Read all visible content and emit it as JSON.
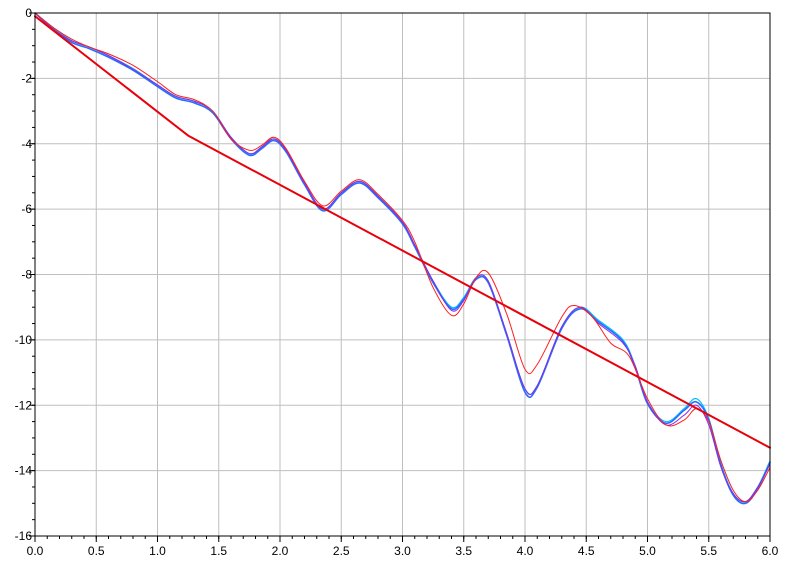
{
  "chart_data": {
    "type": "line",
    "title": "",
    "xlabel": "",
    "ylabel": "",
    "xlim": [
      0,
      6
    ],
    "ylim": [
      -16,
      0
    ],
    "grid": true,
    "x_ticks": [
      {
        "value": 0,
        "label": "0.0"
      },
      {
        "value": 0.5,
        "label": "0.5"
      },
      {
        "value": 1,
        "label": "1.0"
      },
      {
        "value": 1.5,
        "label": "1.5"
      },
      {
        "value": 2,
        "label": "2.0"
      },
      {
        "value": 2.5,
        "label": "2.5"
      },
      {
        "value": 3,
        "label": "3.0"
      },
      {
        "value": 3.5,
        "label": "3.5"
      },
      {
        "value": 4,
        "label": "4.0"
      },
      {
        "value": 4.5,
        "label": "4.5"
      },
      {
        "value": 5,
        "label": "5.0"
      },
      {
        "value": 5.5,
        "label": "5.5"
      },
      {
        "value": 6,
        "label": "6.0"
      }
    ],
    "y_ticks": [
      {
        "value": 0,
        "label": "0"
      },
      {
        "value": -2,
        "label": "-2"
      },
      {
        "value": -4,
        "label": "-4"
      },
      {
        "value": -6,
        "label": "-6"
      },
      {
        "value": -8,
        "label": "-8"
      },
      {
        "value": -10,
        "label": "-10"
      },
      {
        "value": -12,
        "label": "-12"
      },
      {
        "value": -14,
        "label": "-14"
      },
      {
        "value": -16,
        "label": "-16"
      }
    ],
    "series": [
      {
        "color": "#00bfff",
        "width": 1.2,
        "points": [
          [
            0,
            0
          ],
          [
            0.15,
            -0.45
          ],
          [
            0.3,
            -0.85
          ],
          [
            0.45,
            -1.05
          ],
          [
            0.6,
            -1.3
          ],
          [
            0.8,
            -1.7
          ],
          [
            1.0,
            -2.2
          ],
          [
            1.15,
            -2.55
          ],
          [
            1.3,
            -2.7
          ],
          [
            1.45,
            -3.0
          ],
          [
            1.6,
            -3.8
          ],
          [
            1.75,
            -4.3
          ],
          [
            1.85,
            -4.1
          ],
          [
            1.95,
            -3.85
          ],
          [
            2.05,
            -4.2
          ],
          [
            2.2,
            -5.2
          ],
          [
            2.35,
            -6.0
          ],
          [
            2.5,
            -5.5
          ],
          [
            2.65,
            -5.15
          ],
          [
            2.8,
            -5.6
          ],
          [
            3.0,
            -6.4
          ],
          [
            3.1,
            -7.1
          ],
          [
            3.25,
            -8.2
          ],
          [
            3.4,
            -9.0
          ],
          [
            3.5,
            -8.7
          ],
          [
            3.6,
            -8.1
          ],
          [
            3.7,
            -8.2
          ],
          [
            3.85,
            -9.8
          ],
          [
            4.0,
            -11.5
          ],
          [
            4.1,
            -11.4
          ],
          [
            4.3,
            -9.6
          ],
          [
            4.45,
            -9.0
          ],
          [
            4.6,
            -9.4
          ],
          [
            4.8,
            -10.0
          ],
          [
            4.9,
            -10.8
          ],
          [
            5.0,
            -11.9
          ],
          [
            5.15,
            -12.5
          ],
          [
            5.3,
            -12.1
          ],
          [
            5.4,
            -11.8
          ],
          [
            5.5,
            -12.4
          ],
          [
            5.6,
            -13.8
          ],
          [
            5.7,
            -14.7
          ],
          [
            5.8,
            -14.95
          ],
          [
            5.9,
            -14.5
          ],
          [
            6.0,
            -13.7
          ]
        ]
      },
      {
        "color": "#2b6bff",
        "width": 1.6,
        "points": [
          [
            0,
            0
          ],
          [
            0.15,
            -0.5
          ],
          [
            0.3,
            -0.9
          ],
          [
            0.45,
            -1.1
          ],
          [
            0.6,
            -1.35
          ],
          [
            0.8,
            -1.75
          ],
          [
            1.0,
            -2.25
          ],
          [
            1.15,
            -2.6
          ],
          [
            1.3,
            -2.75
          ],
          [
            1.45,
            -3.05
          ],
          [
            1.6,
            -3.85
          ],
          [
            1.75,
            -4.35
          ],
          [
            1.85,
            -4.15
          ],
          [
            1.95,
            -3.9
          ],
          [
            2.05,
            -4.25
          ],
          [
            2.2,
            -5.25
          ],
          [
            2.35,
            -6.05
          ],
          [
            2.5,
            -5.55
          ],
          [
            2.65,
            -5.2
          ],
          [
            2.8,
            -5.65
          ],
          [
            3.0,
            -6.45
          ],
          [
            3.1,
            -7.15
          ],
          [
            3.25,
            -8.25
          ],
          [
            3.4,
            -9.05
          ],
          [
            3.5,
            -8.75
          ],
          [
            3.6,
            -8.15
          ],
          [
            3.7,
            -8.25
          ],
          [
            3.85,
            -9.85
          ],
          [
            4.0,
            -11.6
          ],
          [
            4.1,
            -11.45
          ],
          [
            4.3,
            -9.65
          ],
          [
            4.45,
            -9.05
          ],
          [
            4.6,
            -9.45
          ],
          [
            4.8,
            -10.05
          ],
          [
            4.9,
            -10.85
          ],
          [
            5.0,
            -11.95
          ],
          [
            5.15,
            -12.55
          ],
          [
            5.3,
            -12.15
          ],
          [
            5.4,
            -11.9
          ],
          [
            5.5,
            -12.45
          ],
          [
            5.6,
            -13.85
          ],
          [
            5.7,
            -14.75
          ],
          [
            5.8,
            -15.0
          ],
          [
            5.9,
            -14.55
          ],
          [
            6.0,
            -13.75
          ]
        ]
      },
      {
        "color": "#8a2be2",
        "width": 1.0,
        "points": [
          [
            0,
            0
          ],
          [
            0.15,
            -0.5
          ],
          [
            0.3,
            -0.85
          ],
          [
            0.45,
            -1.05
          ],
          [
            0.6,
            -1.3
          ],
          [
            0.8,
            -1.72
          ],
          [
            1.0,
            -2.2
          ],
          [
            1.15,
            -2.55
          ],
          [
            1.3,
            -2.7
          ],
          [
            1.45,
            -3.0
          ],
          [
            1.6,
            -3.8
          ],
          [
            1.75,
            -4.3
          ],
          [
            1.85,
            -4.1
          ],
          [
            1.95,
            -3.85
          ],
          [
            2.05,
            -4.2
          ],
          [
            2.2,
            -5.2
          ],
          [
            2.35,
            -6.0
          ],
          [
            2.5,
            -5.5
          ],
          [
            2.65,
            -5.15
          ],
          [
            2.8,
            -5.6
          ],
          [
            3.0,
            -6.4
          ],
          [
            3.1,
            -7.1
          ],
          [
            3.25,
            -8.2
          ],
          [
            3.4,
            -9.1
          ],
          [
            3.5,
            -8.8
          ],
          [
            3.6,
            -8.1
          ],
          [
            3.7,
            -8.2
          ],
          [
            3.85,
            -9.8
          ],
          [
            4.0,
            -11.5
          ],
          [
            4.1,
            -11.4
          ],
          [
            4.3,
            -9.6
          ],
          [
            4.45,
            -9.0
          ],
          [
            4.6,
            -9.5
          ],
          [
            4.8,
            -10.1
          ],
          [
            4.9,
            -10.8
          ],
          [
            5.0,
            -11.9
          ],
          [
            5.15,
            -12.6
          ],
          [
            5.3,
            -12.3
          ],
          [
            5.4,
            -12.0
          ],
          [
            5.5,
            -12.6
          ],
          [
            5.6,
            -13.9
          ],
          [
            5.7,
            -14.7
          ],
          [
            5.8,
            -14.95
          ],
          [
            5.9,
            -14.5
          ],
          [
            6.0,
            -13.8
          ]
        ]
      },
      {
        "color": "#ff1e1e",
        "width": 1.0,
        "points": [
          [
            0,
            0
          ],
          [
            0.15,
            -0.45
          ],
          [
            0.3,
            -0.8
          ],
          [
            0.45,
            -1.05
          ],
          [
            0.6,
            -1.25
          ],
          [
            0.8,
            -1.6
          ],
          [
            1.0,
            -2.1
          ],
          [
            1.15,
            -2.5
          ],
          [
            1.3,
            -2.65
          ],
          [
            1.45,
            -3.0
          ],
          [
            1.6,
            -3.85
          ],
          [
            1.75,
            -4.2
          ],
          [
            1.85,
            -4.05
          ],
          [
            1.95,
            -3.8
          ],
          [
            2.05,
            -4.15
          ],
          [
            2.2,
            -5.15
          ],
          [
            2.35,
            -5.9
          ],
          [
            2.5,
            -5.45
          ],
          [
            2.65,
            -5.1
          ],
          [
            2.8,
            -5.55
          ],
          [
            3.0,
            -6.35
          ],
          [
            3.1,
            -7.0
          ],
          [
            3.25,
            -8.4
          ],
          [
            3.4,
            -9.25
          ],
          [
            3.5,
            -8.9
          ],
          [
            3.6,
            -8.1
          ],
          [
            3.7,
            -7.95
          ],
          [
            3.85,
            -9.2
          ],
          [
            4.0,
            -10.9
          ],
          [
            4.1,
            -10.75
          ],
          [
            4.3,
            -9.3
          ],
          [
            4.4,
            -8.95
          ],
          [
            4.55,
            -9.3
          ],
          [
            4.7,
            -10.1
          ],
          [
            4.85,
            -10.5
          ],
          [
            5.0,
            -11.8
          ],
          [
            5.15,
            -12.6
          ],
          [
            5.3,
            -12.45
          ],
          [
            5.4,
            -12.1
          ],
          [
            5.5,
            -12.5
          ],
          [
            5.6,
            -13.7
          ],
          [
            5.7,
            -14.6
          ],
          [
            5.8,
            -14.95
          ],
          [
            5.9,
            -14.6
          ],
          [
            6.0,
            -13.9
          ]
        ]
      },
      {
        "color": "#e8000b",
        "width": 2.0,
        "points": [
          [
            0,
            -0.1
          ],
          [
            1.25,
            -3.75
          ],
          [
            6.0,
            -13.3
          ]
        ]
      }
    ]
  }
}
